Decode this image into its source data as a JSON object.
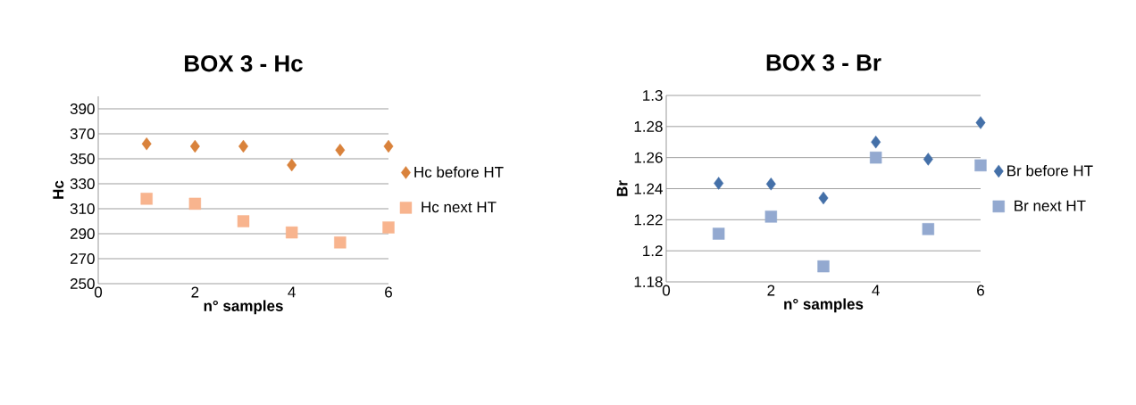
{
  "chart_data": [
    {
      "type": "scatter",
      "title": "BOX 3 - Hc",
      "xlabel": "n° samples",
      "ylabel": "Hc",
      "xlim": [
        0,
        6
      ],
      "xticks": [
        0,
        2,
        4,
        6
      ],
      "ylim": [
        250,
        400
      ],
      "yticks": [
        250,
        270,
        290,
        310,
        330,
        350,
        370,
        390
      ],
      "grid": "y",
      "legend": "right",
      "series": [
        {
          "name": "Hc before HT",
          "color": "#d9823b",
          "marker": "diamond",
          "x": [
            1,
            2,
            3,
            4,
            5,
            6
          ],
          "values": [
            362,
            360,
            360,
            345,
            357,
            360
          ]
        },
        {
          "name": "Hc next HT",
          "color": "#f8b48e",
          "marker": "square",
          "x": [
            1,
            2,
            3,
            4,
            5,
            6
          ],
          "values": [
            318,
            314,
            300,
            291,
            283,
            295
          ]
        }
      ]
    },
    {
      "type": "scatter",
      "title": "BOX 3 - Br",
      "xlabel": "n° samples",
      "ylabel": "Br",
      "xlim": [
        0,
        6
      ],
      "xticks": [
        0,
        2,
        4,
        6
      ],
      "ylim": [
        1.18,
        1.3
      ],
      "yticks": [
        1.18,
        1.2,
        1.22,
        1.24,
        1.26,
        1.28,
        1.3
      ],
      "grid": "y",
      "legend": "right",
      "series": [
        {
          "name": "Br before HT",
          "color": "#4470a8",
          "marker": "diamond",
          "x": [
            1,
            2,
            3,
            4,
            5,
            6
          ],
          "values": [
            1.2435,
            1.243,
            1.234,
            1.27,
            1.259,
            1.2825
          ]
        },
        {
          "name": "Br next HT",
          "color": "#93a9d0",
          "marker": "square",
          "x": [
            1,
            2,
            3,
            4,
            5,
            6
          ],
          "values": [
            1.211,
            1.222,
            1.19,
            1.26,
            1.214,
            1.255
          ]
        }
      ]
    }
  ]
}
